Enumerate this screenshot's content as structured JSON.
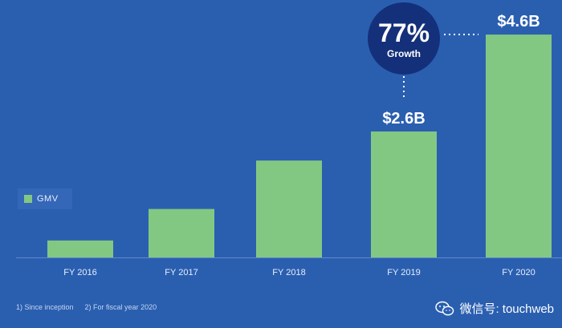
{
  "chart_data": {
    "type": "bar",
    "categories": [
      "FY 2016",
      "FY 2017",
      "FY 2018",
      "FY 2019",
      "FY 2020"
    ],
    "series": [
      {
        "name": "GMV",
        "values": [
          0.35,
          1.0,
          2.0,
          2.6,
          4.6
        ]
      }
    ],
    "data_labels": [
      "",
      "",
      "",
      "$2.6B",
      "$4.6B"
    ],
    "ylim": [
      0,
      4.9
    ],
    "legend": {
      "label": "GMV",
      "position": "left-middle"
    },
    "annotation": {
      "value": "77%",
      "label": "Growth"
    },
    "colors": {
      "background": "#2a5fb0",
      "bar": "#82c883",
      "badge": "#14307a",
      "text": "#ffffff"
    },
    "grid": false
  },
  "footnotes": [
    "1) Since inception",
    "2) For fiscal year 2020"
  ],
  "watermark": {
    "text": "微信号: touchweb",
    "icon": "wechat-icon"
  }
}
